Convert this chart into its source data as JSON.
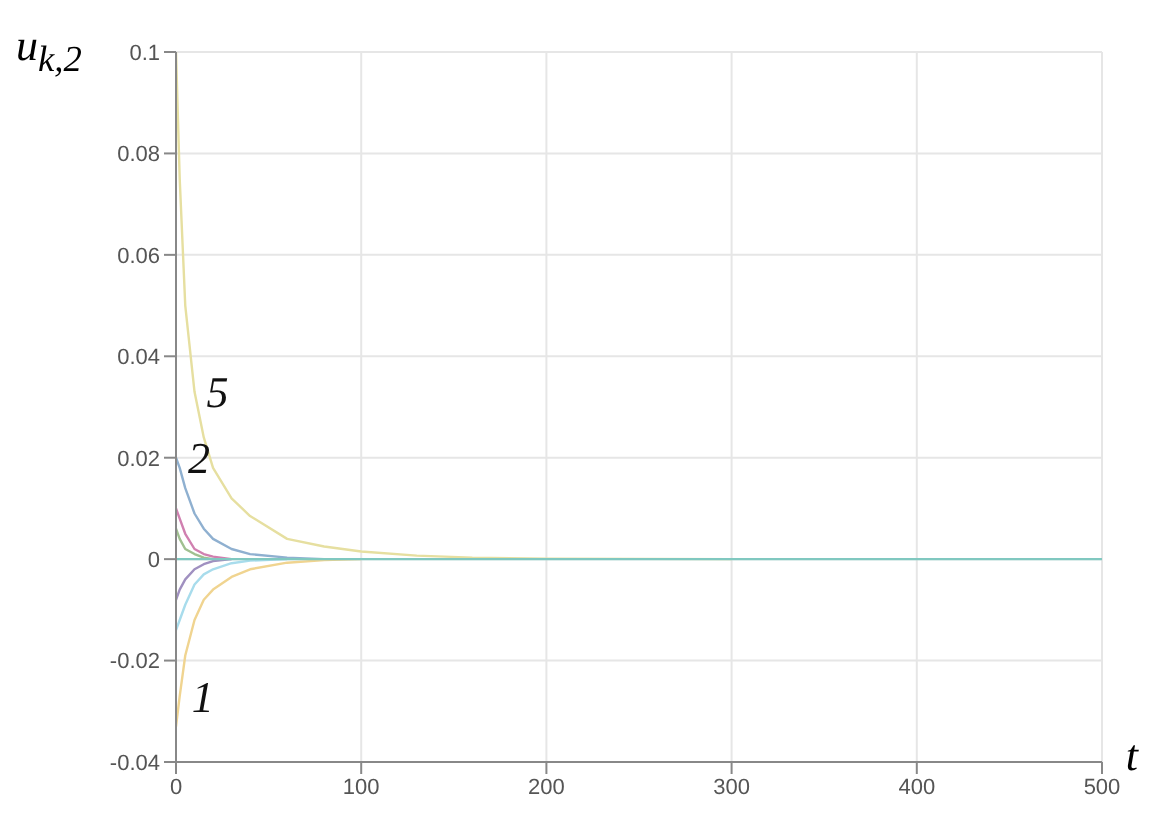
{
  "chart_data": {
    "type": "line",
    "xlabel": "t",
    "ylabel": "u$_{k,2}$",
    "x": [
      0,
      2,
      5,
      10,
      15,
      20,
      30,
      40,
      60,
      80,
      100,
      130,
      160,
      200,
      300,
      400,
      500
    ],
    "series": [
      {
        "color": "#e6dfa0",
        "values": [
          0.1,
          0.075,
          0.05,
          0.033,
          0.024,
          0.018,
          0.012,
          0.0085,
          0.004,
          0.0025,
          0.0015,
          0.0007,
          0.0003,
          0.0001,
          0,
          null,
          null
        ]
      },
      {
        "color": "#8fb0d0",
        "values": [
          0.02,
          0.018,
          0.014,
          0.009,
          0.006,
          0.004,
          0.002,
          0.001,
          0.0003,
          0,
          null,
          null,
          null,
          null,
          null,
          null,
          null
        ]
      },
      {
        "color": "#f0d490",
        "values": [
          -0.033,
          -0.027,
          -0.019,
          -0.012,
          -0.008,
          -0.006,
          -0.0035,
          -0.002,
          -0.0007,
          -0.0002,
          0,
          null,
          null,
          null,
          null,
          null,
          null
        ]
      },
      {
        "color": "#a8dcec",
        "values": [
          -0.014,
          -0.012,
          -0.009,
          -0.005,
          -0.003,
          -0.002,
          -0.0008,
          -0.0003,
          0,
          null,
          null,
          null,
          null,
          null,
          null,
          null,
          null
        ]
      },
      {
        "color": "#d080b0",
        "values": [
          0.01,
          0.008,
          0.005,
          0.002,
          0.001,
          0.0005,
          0,
          null,
          null,
          null,
          null,
          null,
          null,
          null,
          null,
          null,
          null
        ]
      },
      {
        "color": "#a090c0",
        "values": [
          -0.008,
          -0.006,
          -0.004,
          -0.002,
          -0.001,
          -0.0004,
          0,
          null,
          null,
          null,
          null,
          null,
          null,
          null,
          null,
          null,
          null
        ]
      },
      {
        "color": "#a0c090",
        "values": [
          0.006,
          0.004,
          0.002,
          0.001,
          0.0003,
          0,
          null,
          null,
          null,
          null,
          null,
          null,
          null,
          null,
          null,
          null,
          null
        ]
      },
      {
        "color": "#80c8c0",
        "values": [
          0,
          0,
          0,
          0,
          0,
          0,
          0,
          0,
          0,
          0,
          0,
          0,
          0,
          0,
          0,
          0,
          0
        ]
      }
    ],
    "xlim": [
      0,
      500
    ],
    "xticks": [
      0,
      100,
      200,
      300,
      400,
      500
    ],
    "ylim": [
      -0.04,
      0.1
    ],
    "yticks": [
      -0.04,
      -0.02,
      0,
      0.02,
      0.04,
      0.06,
      0.08,
      0.1
    ],
    "grid": true,
    "annotations": [
      {
        "text": "5",
        "x": 10,
        "y": 0.033
      },
      {
        "text": "2",
        "x": 0,
        "y": 0.02
      },
      {
        "text": "1",
        "x": 2,
        "y": -0.027
      }
    ]
  }
}
